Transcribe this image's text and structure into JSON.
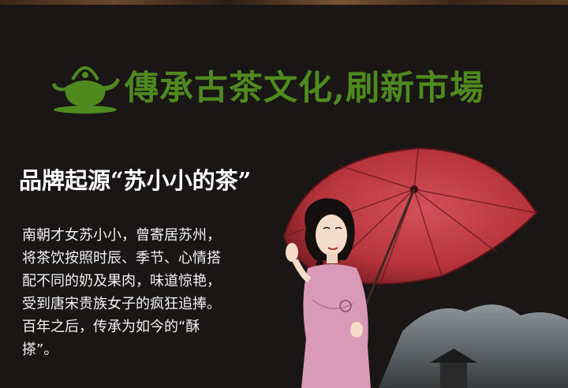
{
  "banner": {
    "icon": "teapot-icon",
    "title": "傳承古茶文化,刷新市場",
    "color": "#4f8a1e"
  },
  "section": {
    "heading": "品牌起源“苏小小的茶”",
    "paragraph_lines": [
      "南朝才女苏小小，曾寄居苏州，",
      "将茶饮按照时辰、季节、心情搭",
      "配不同的奶及果肉，味道惊艳，",
      "受到唐宋贵族女子的疯狂追捧。",
      "百年之后，传承为如今的“酥",
      "搽”。"
    ]
  },
  "illustration": {
    "subject": "woman-with-red-umbrella-illustration",
    "umbrella_color": "#b8343c",
    "dress_color": "#d99ab8"
  }
}
